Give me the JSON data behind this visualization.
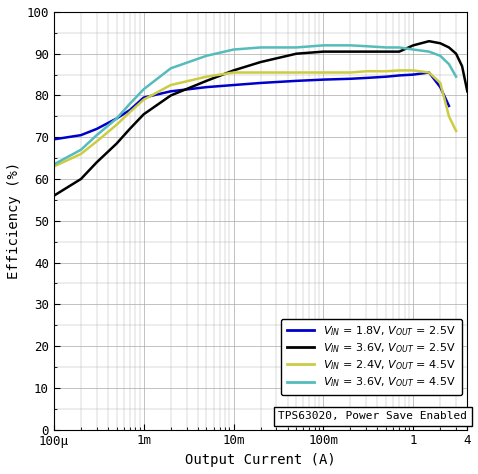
{
  "title": "",
  "xlabel": "Output Current (A)",
  "ylabel": "Efficiency (%)",
  "ylim": [
    0,
    100
  ],
  "annotation": "TPS63020, Power Save Enabled",
  "legend": [
    {
      "label": "V_{IN} = 1.8V, V_{OUT} = 2.5V",
      "color": "#0000cc"
    },
    {
      "label": "V_{IN} = 3.6V, V_{OUT} = 2.5V",
      "color": "#000000"
    },
    {
      "label": "V_{IN} = 2.4V, V_{OUT} = 4.5V",
      "color": "#cccc44"
    },
    {
      "label": "V_{IN} = 3.6V, V_{OUT} = 4.5V",
      "color": "#55bbbb"
    }
  ],
  "curves": {
    "blue": {
      "color": "#0000cc",
      "x": [
        0.0001,
        0.0002,
        0.0003,
        0.0005,
        0.0007,
        0.001,
        0.002,
        0.005,
        0.01,
        0.02,
        0.05,
        0.1,
        0.2,
        0.3,
        0.5,
        0.7,
        1.0,
        1.5,
        2.0,
        2.5
      ],
      "y": [
        69.5,
        70.5,
        72.0,
        74.5,
        76.5,
        79.5,
        81.0,
        82.0,
        82.5,
        83.0,
        83.5,
        83.8,
        84.0,
        84.2,
        84.5,
        84.8,
        85.0,
        85.5,
        82.0,
        77.5
      ]
    },
    "black": {
      "color": "#000000",
      "x": [
        0.0001,
        0.0002,
        0.0003,
        0.0005,
        0.0007,
        0.001,
        0.002,
        0.005,
        0.01,
        0.02,
        0.05,
        0.1,
        0.2,
        0.3,
        0.5,
        0.7,
        1.0,
        1.5,
        2.0,
        2.5,
        3.0,
        3.5,
        4.0
      ],
      "y": [
        56.0,
        60.0,
        64.0,
        68.5,
        72.0,
        75.5,
        80.0,
        83.5,
        86.0,
        88.0,
        90.0,
        90.5,
        90.5,
        90.5,
        90.5,
        90.5,
        92.0,
        93.0,
        92.5,
        91.5,
        90.0,
        87.0,
        81.0
      ]
    },
    "yellow": {
      "color": "#cccc44",
      "x": [
        0.0001,
        0.0002,
        0.0003,
        0.0005,
        0.0007,
        0.001,
        0.002,
        0.005,
        0.01,
        0.02,
        0.05,
        0.1,
        0.2,
        0.3,
        0.5,
        0.7,
        1.0,
        1.5,
        2.0,
        2.5,
        3.0
      ],
      "y": [
        63.0,
        66.0,
        69.0,
        73.0,
        76.0,
        79.0,
        82.5,
        84.5,
        85.5,
        85.5,
        85.5,
        85.5,
        85.5,
        85.8,
        85.8,
        86.0,
        86.0,
        85.5,
        83.0,
        75.0,
        71.5
      ]
    },
    "cyan": {
      "color": "#55bbbb",
      "x": [
        0.0001,
        0.0002,
        0.0003,
        0.0005,
        0.0007,
        0.001,
        0.002,
        0.005,
        0.01,
        0.02,
        0.05,
        0.1,
        0.2,
        0.3,
        0.5,
        0.7,
        1.0,
        1.5,
        2.0,
        2.5,
        3.0
      ],
      "y": [
        63.5,
        67.0,
        70.5,
        74.5,
        78.0,
        81.5,
        86.5,
        89.5,
        91.0,
        91.5,
        91.5,
        92.0,
        92.0,
        91.8,
        91.5,
        91.5,
        91.0,
        90.5,
        89.5,
        87.5,
        84.5
      ]
    }
  },
  "bg_color": "#ffffff",
  "grid_color": "#aaaaaa",
  "xtick_labels": [
    "100μ",
    "1m",
    "10m",
    "100m",
    "1",
    "4"
  ],
  "xtick_vals": [
    0.0001,
    0.001,
    0.01,
    0.1,
    1.0,
    4.0
  ],
  "ytick_vals": [
    0,
    10,
    20,
    30,
    40,
    50,
    60,
    70,
    80,
    90,
    100
  ]
}
